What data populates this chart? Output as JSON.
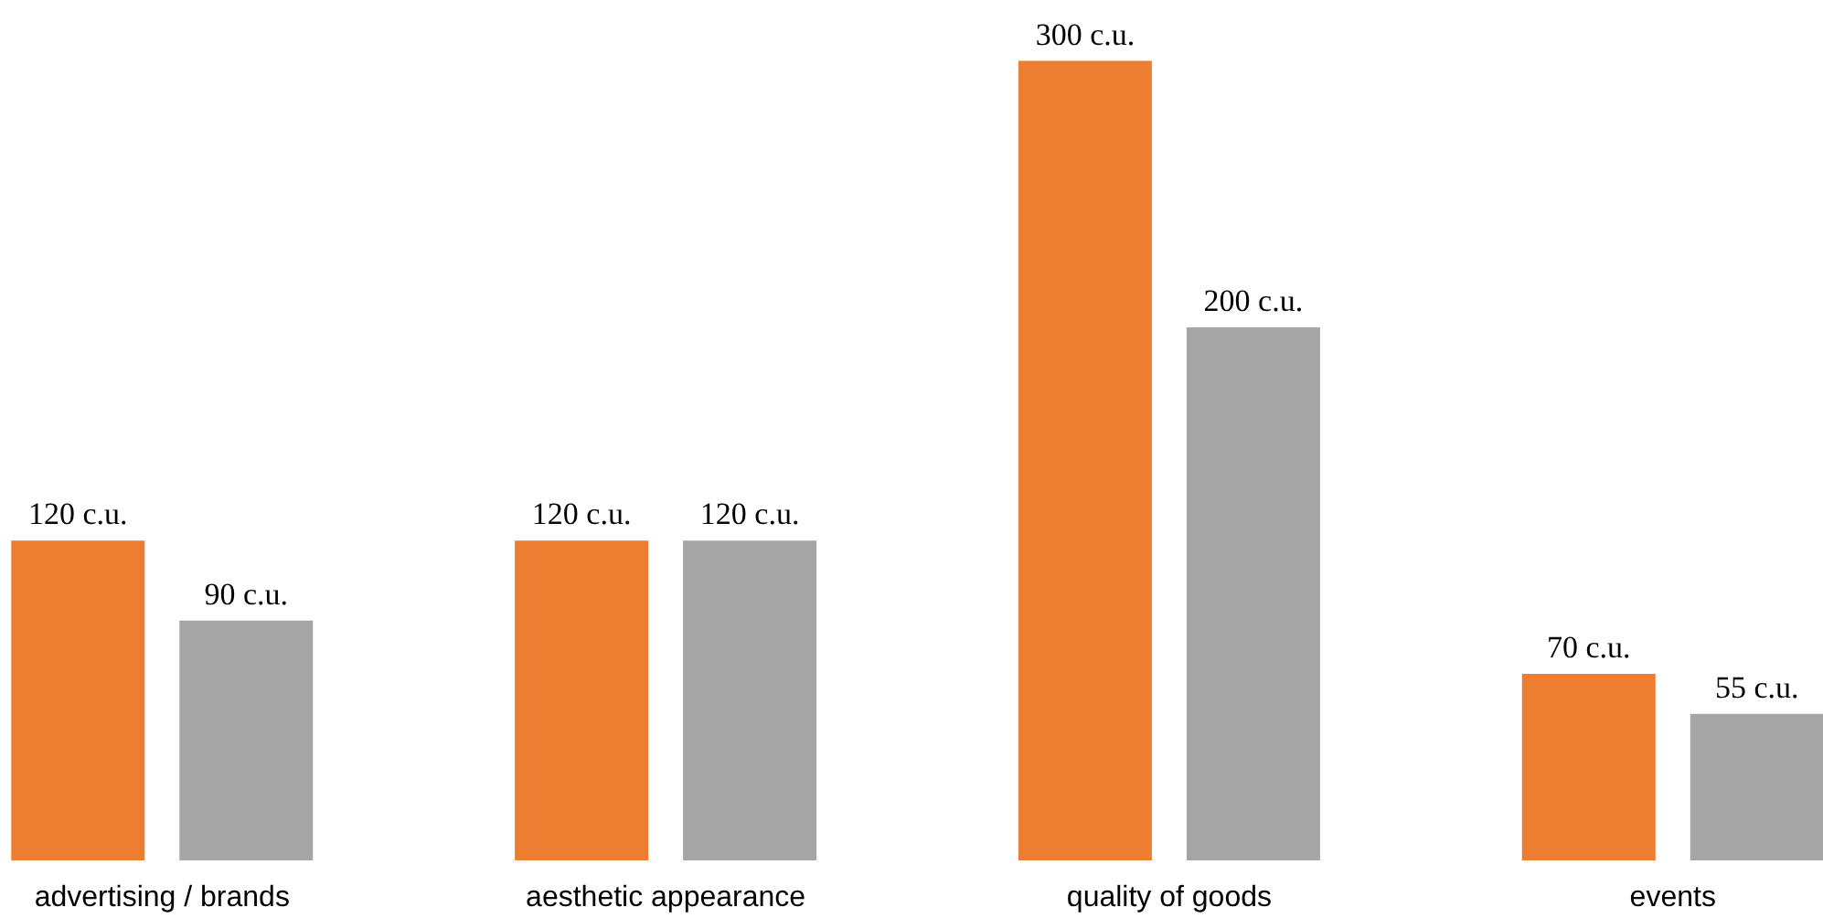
{
  "chart_data": {
    "type": "bar",
    "categories": [
      "advertising / brands",
      "aesthetic appearance",
      "quality of goods",
      "events"
    ],
    "series": [
      {
        "color": "#ed7d31",
        "values": [
          120,
          120,
          300,
          70
        ],
        "value_labels": [
          "120 c.u.",
          "120 c.u.",
          "300 c.u.",
          "70 c.u."
        ]
      },
      {
        "color": "#a5a5a5",
        "values": [
          90,
          120,
          200,
          55
        ],
        "value_labels": [
          "90 c.u.",
          "120 c.u.",
          "200 c.u.",
          "55 c.u."
        ]
      }
    ],
    "data_labels": false
  }
}
